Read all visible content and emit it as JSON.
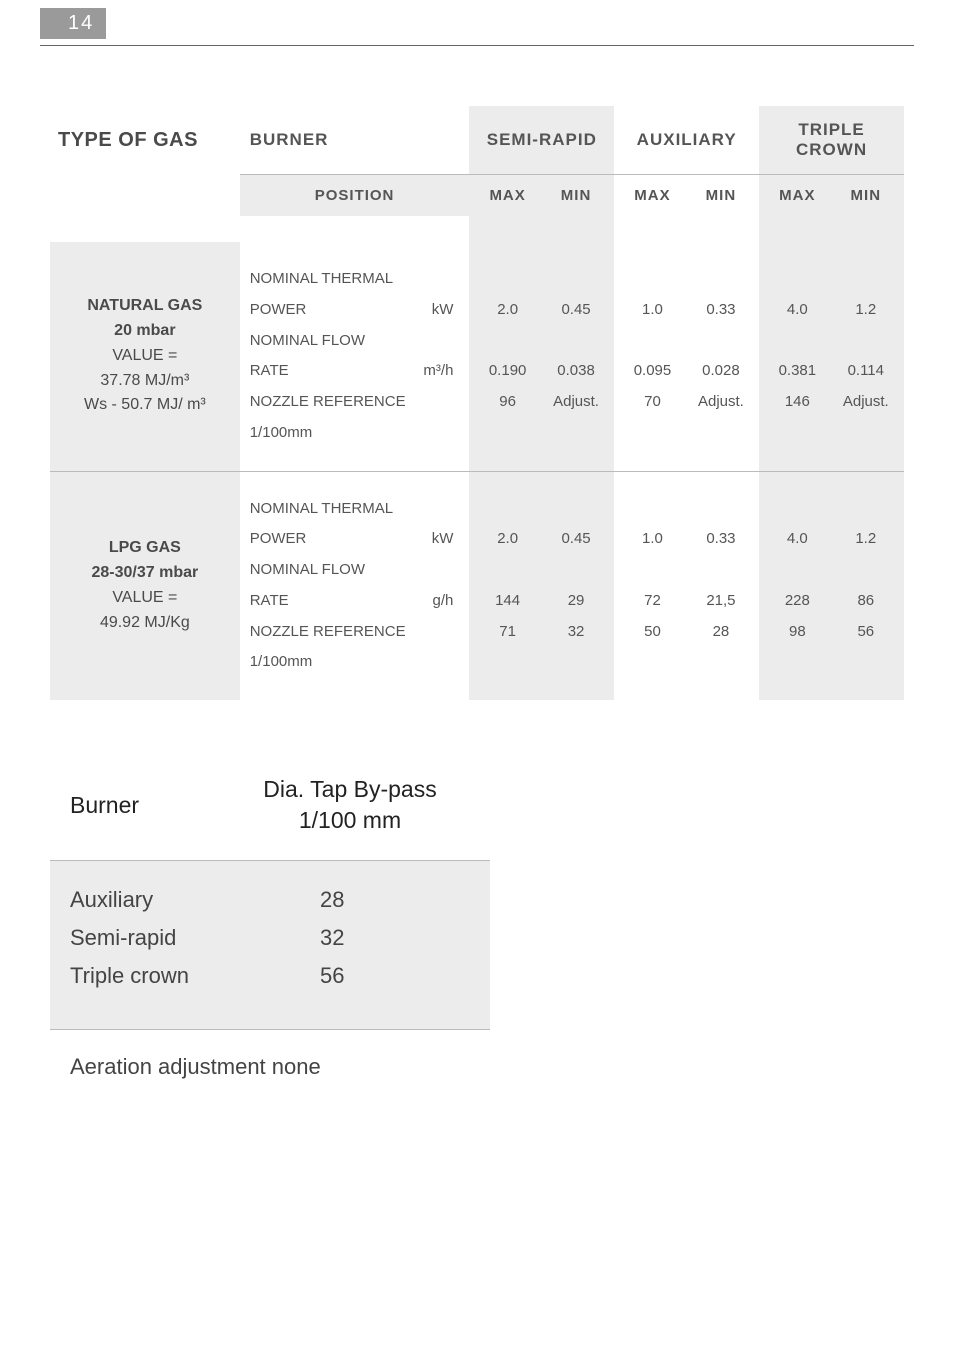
{
  "page_number": "14",
  "table": {
    "headers": {
      "type_of_gas": "TYPE OF GAS",
      "burner": "BURNER",
      "position": "POSITION",
      "semi_rapid": "SEMI-RAPID",
      "auxiliary": "AUXILIARY",
      "triple_crown": "TRIPLE CROWN",
      "max": "MAX",
      "min": "MIN"
    },
    "burner_labels": {
      "nominal_thermal": "NOMINAL THERMAL",
      "power": "POWER",
      "nominal_flow": "NOMINAL FLOW",
      "rate": "RATE",
      "nozzle_reference": "NOZZLE REFERENCE",
      "ref_unit": "1/100mm",
      "kw": "kW",
      "m3h": "m³/h",
      "gh": "g/h"
    },
    "rows": [
      {
        "label_lines": [
          "<b>NATURAL GAS</b>",
          "<b>20 mbar</b>",
          "VALUE =",
          "37.78 MJ/m³",
          "Ws - 50.7 MJ/ m³"
        ],
        "unit2": "m³/h",
        "semi_rapid": {
          "power": [
            "2.0",
            "0.45"
          ],
          "flow": [
            "0.190",
            "0.038"
          ],
          "ref": [
            "96",
            "Adjust."
          ]
        },
        "auxiliary": {
          "power": [
            "1.0",
            "0.33"
          ],
          "flow": [
            "0.095",
            "0.028"
          ],
          "ref": [
            "70",
            "Adjust."
          ]
        },
        "triple_crown": {
          "power": [
            "4.0",
            "1.2"
          ],
          "flow": [
            "0.381",
            "0.114"
          ],
          "ref": [
            "146",
            "Adjust."
          ]
        }
      },
      {
        "label_lines": [
          "<b>LPG GAS</b>",
          "<b>28-30/37 mbar</b>",
          "VALUE =",
          "49.92 MJ/Kg"
        ],
        "unit2": "g/h",
        "semi_rapid": {
          "power": [
            "2.0",
            "0.45"
          ],
          "flow": [
            "144",
            "29"
          ],
          "ref": [
            "71",
            "32"
          ]
        },
        "auxiliary": {
          "power": [
            "1.0",
            "0.33"
          ],
          "flow": [
            "72",
            "21,5"
          ],
          "ref": [
            "50",
            "28"
          ]
        },
        "triple_crown": {
          "power": [
            "4.0",
            "1.2"
          ],
          "flow": [
            "228",
            "86"
          ],
          "ref": [
            "98",
            "56"
          ]
        }
      }
    ]
  },
  "bypass": {
    "header_left": "Burner",
    "header_right_line1": "Dia. Tap By-pass",
    "header_right_line2": "1/100 mm",
    "rows": [
      {
        "name": "Auxiliary",
        "value": "28"
      },
      {
        "name": "Semi-rapid",
        "value": "32"
      },
      {
        "name": "Triple crown",
        "value": "56"
      }
    ],
    "footer": "Aeration adjustment none"
  },
  "colors": {
    "header_bg": "#9a9a9a",
    "alt_bg": "#ececec",
    "text": "#555",
    "dark_text": "#4a4a4a"
  }
}
